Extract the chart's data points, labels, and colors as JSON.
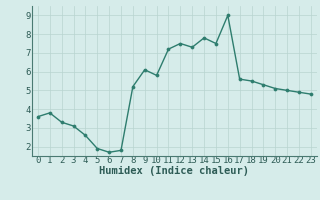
{
  "x": [
    0,
    1,
    2,
    3,
    4,
    5,
    6,
    7,
    8,
    9,
    10,
    11,
    12,
    13,
    14,
    15,
    16,
    17,
    18,
    19,
    20,
    21,
    22,
    23
  ],
  "y": [
    3.6,
    3.8,
    3.3,
    3.1,
    2.6,
    1.9,
    1.7,
    1.8,
    5.2,
    6.1,
    5.8,
    7.2,
    7.5,
    7.3,
    7.8,
    7.5,
    9.0,
    5.6,
    5.5,
    5.3,
    5.1,
    5.0,
    4.9,
    4.8
  ],
  "line_color": "#2e7d6e",
  "marker": "o",
  "marker_size": 2.2,
  "line_width": 1.0,
  "bg_color": "#d6ecea",
  "grid_color": "#b8d4d0",
  "xlabel": "Humidex (Indice chaleur)",
  "xlim": [
    -0.5,
    23.5
  ],
  "ylim": [
    1.5,
    9.5
  ],
  "yticks": [
    2,
    3,
    4,
    5,
    6,
    7,
    8,
    9
  ],
  "xticks": [
    0,
    1,
    2,
    3,
    4,
    5,
    6,
    7,
    8,
    9,
    10,
    11,
    12,
    13,
    14,
    15,
    16,
    17,
    18,
    19,
    20,
    21,
    22,
    23
  ],
  "xlabel_fontsize": 7.5,
  "tick_fontsize": 6.5,
  "axis_color": "#4a7a72",
  "label_color": "#2e5c56"
}
